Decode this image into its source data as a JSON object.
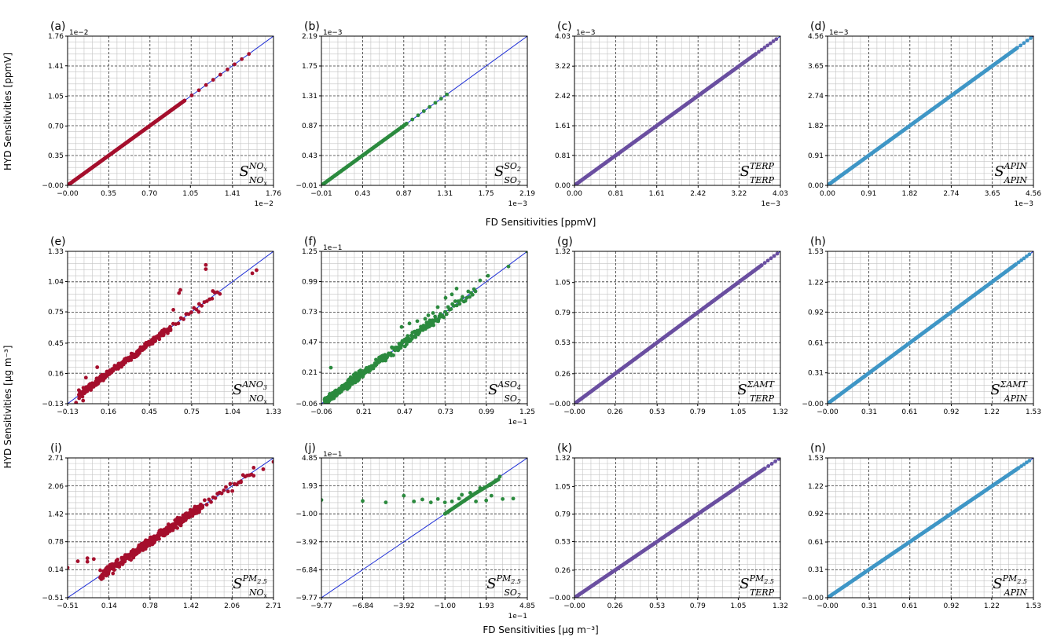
{
  "figure": {
    "xlabel_top": "FD Sensitivities [ppmV]",
    "xlabel_bottom": "FD Sensitivities [μg m⁻³]",
    "ylabel_top": "HYD Sensitivities [ppmV]",
    "ylabel_bottom": "HYD Sensitivities [μg m⁻³]"
  },
  "colors": {
    "NOx": "#a50f2d",
    "SO2": "#2b8a3e",
    "TERP": "#6a4fa0",
    "APIN": "#3f96c6",
    "reference_line": "#1f2fd6",
    "grid": "#000000"
  },
  "chart_data": [
    {
      "id": "a",
      "label": "(a)",
      "type": "scatter",
      "color_key": "NOx",
      "ticks": [
        "−0.00",
        "0.35",
        "0.70",
        "1.05",
        "1.41",
        "1.76"
      ],
      "tick_values": [
        0,
        0.35,
        0.7,
        1.05,
        1.41,
        1.76
      ],
      "lim": [
        0,
        1.76
      ],
      "multiplier": "1e−2",
      "symbol": {
        "base": "S",
        "sup": "NO",
        "sup_sub": "x",
        "sub": "NO",
        "sub_sub": "x"
      },
      "series": [
        {
          "segments": [
            [
              0,
              0,
              1.0,
              1.0,
              260
            ],
            [
              1.0,
              1.0,
              1.55,
              1.55,
              10
            ]
          ],
          "outliers": [],
          "bias": 0
        }
      ]
    },
    {
      "id": "b",
      "label": "(b)",
      "type": "scatter",
      "color_key": "SO2",
      "ticks": [
        "−0.01",
        "0.43",
        "0.87",
        "1.31",
        "1.75",
        "2.19"
      ],
      "tick_values": [
        -0.01,
        0.43,
        0.87,
        1.31,
        1.75,
        2.19
      ],
      "lim": [
        -0.01,
        2.19
      ],
      "multiplier": "1e−3",
      "symbol": {
        "base": "S",
        "sup": "SO",
        "sup_sub": "2",
        "sub": "SO",
        "sub_sub": "2"
      },
      "series": [
        {
          "segments": [
            [
              0,
              0,
              0.9,
              0.9,
              120
            ],
            [
              0.9,
              0.9,
              1.33,
              1.33,
              8
            ]
          ],
          "outliers": [],
          "bias": 0
        }
      ]
    },
    {
      "id": "c",
      "label": "(c)",
      "type": "scatter",
      "color_key": "TERP",
      "ticks": [
        "0.00",
        "0.81",
        "1.61",
        "2.42",
        "3.22",
        "4.03"
      ],
      "tick_values": [
        0,
        0.81,
        1.61,
        2.42,
        3.22,
        4.03
      ],
      "lim": [
        0,
        4.03
      ],
      "multiplier": "1e−3",
      "symbol": {
        "base": "S",
        "sup": "TERP",
        "sup_sub": "",
        "sub": "TERP",
        "sub_sub": ""
      },
      "series": [
        {
          "segments": [
            [
              0,
              0,
              3.55,
              3.55,
              300
            ],
            [
              3.55,
              3.55,
              3.95,
              3.95,
              8
            ]
          ],
          "outliers": [],
          "bias": 0
        }
      ]
    },
    {
      "id": "d",
      "label": "(d)",
      "type": "scatter",
      "color_key": "APIN",
      "ticks": [
        "0.00",
        "0.91",
        "1.82",
        "2.74",
        "3.65",
        "4.56"
      ],
      "tick_values": [
        0,
        0.91,
        1.82,
        2.74,
        3.65,
        4.56
      ],
      "lim": [
        0,
        4.56
      ],
      "multiplier": "1e−3",
      "symbol": {
        "base": "S",
        "sup": "APIN",
        "sup_sub": "",
        "sub": "APIN",
        "sub_sub": ""
      },
      "series": [
        {
          "segments": [
            [
              0,
              0,
              4.2,
              4.2,
              320
            ],
            [
              4.2,
              4.2,
              4.5,
              4.5,
              5
            ]
          ],
          "outliers": [],
          "bias": 0
        }
      ]
    },
    {
      "id": "e",
      "label": "(e)",
      "type": "scatter",
      "color_key": "NOx",
      "ticks": [
        "−0.13",
        "0.16",
        "0.45",
        "0.75",
        "1.04",
        "1.33"
      ],
      "tick_values": [
        -0.13,
        0.16,
        0.45,
        0.75,
        1.04,
        1.33
      ],
      "lim": [
        -0.13,
        1.33
      ],
      "multiplier": "",
      "symbol": {
        "base": "S",
        "sup": "ANO",
        "sup_sub": "3",
        "sub": "NO",
        "sub_sub": "x"
      },
      "series": [
        {
          "segments": [
            [
              -0.05,
              -0.05,
              0.15,
              0.15,
              120
            ],
            [
              0.15,
              0.15,
              0.6,
              0.6,
              160
            ],
            [
              0.6,
              0.6,
              0.95,
              0.95,
              20
            ]
          ],
          "outliers": [
            [
              0.85,
              1.2
            ],
            [
              0.85,
              1.16
            ],
            [
              0.67,
              0.96
            ],
            [
              0.66,
              0.93
            ],
            [
              0.8,
              0.75
            ],
            [
              0.62,
              0.77
            ],
            [
              1.18,
              1.12
            ],
            [
              1.21,
              1.15
            ],
            [
              0.9,
              0.95
            ],
            [
              -0.07,
              -0.12
            ],
            [
              -0.02,
              -0.1
            ],
            [
              0.0,
              0.12
            ],
            [
              -0.05,
              0.0
            ],
            [
              0.08,
              0.22
            ]
          ],
          "bias": 0.03
        }
      ]
    },
    {
      "id": "f",
      "label": "(f)",
      "type": "scatter",
      "color_key": "SO2",
      "ticks": [
        "−0.06",
        "0.21",
        "0.47",
        "0.73",
        "0.99",
        "1.25"
      ],
      "tick_values": [
        -0.06,
        0.21,
        0.47,
        0.73,
        0.99,
        1.25
      ],
      "lim": [
        -0.06,
        1.25
      ],
      "multiplier": "1e−1",
      "symbol": {
        "base": "S",
        "sup": "ASO",
        "sup_sub": "4",
        "sub": "SO",
        "sub_sub": "2"
      },
      "series": [
        {
          "segments": [
            [
              -0.04,
              -0.04,
              0.2,
              0.2,
              200
            ],
            [
              0.2,
              0.2,
              0.7,
              0.7,
              150
            ],
            [
              0.7,
              0.7,
              0.92,
              0.92,
              25
            ]
          ],
          "outliers": [
            [
              0.0,
              0.25
            ],
            [
              0.45,
              0.6
            ],
            [
              0.5,
              0.63
            ],
            [
              0.55,
              0.65
            ],
            [
              0.6,
              0.67
            ],
            [
              0.62,
              0.7
            ],
            [
              0.65,
              0.72
            ],
            [
              0.68,
              0.77
            ],
            [
              0.73,
              0.85
            ],
            [
              0.77,
              0.88
            ],
            [
              0.8,
              0.93
            ],
            [
              0.95,
              1.0
            ],
            [
              1.0,
              1.04
            ],
            [
              1.13,
              1.12
            ],
            [
              1.25,
              1.25
            ]
          ],
          "bias": 0.04
        }
      ]
    },
    {
      "id": "g",
      "label": "(g)",
      "type": "scatter",
      "color_key": "TERP",
      "ticks": [
        "−0.00",
        "0.26",
        "0.53",
        "0.79",
        "1.05",
        "1.32"
      ],
      "tick_values": [
        0,
        0.26,
        0.53,
        0.79,
        1.05,
        1.32
      ],
      "lim": [
        0,
        1.32
      ],
      "multiplier": "",
      "symbol": {
        "base": "S",
        "sup": "ΣAMT",
        "sup_sub": "",
        "sub": "TERP",
        "sub_sub": ""
      },
      "series": [
        {
          "segments": [
            [
              0,
              0,
              1.2,
              1.2,
              320
            ],
            [
              1.2,
              1.2,
              1.3,
              1.3,
              6
            ]
          ],
          "outliers": [],
          "bias": 0
        }
      ]
    },
    {
      "id": "h",
      "label": "(h)",
      "type": "scatter",
      "color_key": "APIN",
      "ticks": [
        "−0.00",
        "0.31",
        "0.61",
        "0.92",
        "1.22",
        "1.53"
      ],
      "tick_values": [
        0,
        0.31,
        0.61,
        0.92,
        1.22,
        1.53
      ],
      "lim": [
        0,
        1.53
      ],
      "multiplier": "",
      "symbol": {
        "base": "S",
        "sup": "ΣAMT",
        "sup_sub": "",
        "sub": "APIN",
        "sub_sub": ""
      },
      "series": [
        {
          "segments": [
            [
              0,
              0,
              1.4,
              1.4,
              320
            ],
            [
              1.4,
              1.4,
              1.5,
              1.5,
              6
            ]
          ],
          "outliers": [],
          "bias": 0
        }
      ]
    },
    {
      "id": "i",
      "label": "(i)",
      "type": "scatter",
      "color_key": "NOx",
      "ticks": [
        "−0.51",
        "0.14",
        "0.78",
        "1.42",
        "2.06",
        "2.71"
      ],
      "tick_values": [
        -0.51,
        0.14,
        0.78,
        1.42,
        2.06,
        2.71
      ],
      "lim": [
        -0.51,
        2.71
      ],
      "multiplier": "",
      "symbol": {
        "base": "S",
        "sup": "PM",
        "sup_sub": "2.5",
        "sub": "NO",
        "sub_sub": "x"
      },
      "series": [
        {
          "segments": [
            [
              0.0,
              0.0,
              0.5,
              0.5,
              80
            ],
            [
              0.5,
              0.5,
              1.6,
              1.6,
              280
            ],
            [
              1.6,
              1.6,
              2.4,
              2.4,
              25
            ]
          ],
          "outliers": [
            [
              -0.51,
              0.18
            ],
            [
              -0.35,
              0.33
            ],
            [
              -0.2,
              0.4
            ],
            [
              -0.1,
              0.38
            ],
            [
              -0.2,
              0.32
            ],
            [
              2.55,
              2.45
            ],
            [
              2.4,
              2.3
            ],
            [
              2.71,
              2.62
            ],
            [
              2.2,
              2.15
            ],
            [
              0.1,
              0.0
            ],
            [
              0.0,
              -0.05
            ],
            [
              0.2,
              0.05
            ]
          ],
          "bias": 0.05
        }
      ]
    },
    {
      "id": "j",
      "label": "(j)",
      "type": "scatter",
      "color_key": "SO2",
      "ticks": [
        "−9.77",
        "−6.84",
        "−3.92",
        "−1.00",
        "1.93",
        "4.85"
      ],
      "tick_values": [
        -9.77,
        -6.84,
        -3.92,
        -1.0,
        1.93,
        4.85
      ],
      "lim": [
        -9.77,
        4.85
      ],
      "multiplier": "1e−1",
      "symbol": {
        "base": "S",
        "sup": "PM",
        "sup_sub": "2.5",
        "sub": "SO",
        "sub_sub": "2"
      },
      "series": [
        {
          "segments": [
            [
              -1.0,
              -1.0,
              1.0,
              1.0,
              40
            ],
            [
              1.0,
              1.0,
              2.8,
              2.6,
              30
            ]
          ],
          "outliers": [
            [
              -9.77,
              0.45
            ],
            [
              -6.84,
              0.35
            ],
            [
              -5.2,
              0.2
            ],
            [
              -3.92,
              0.9
            ],
            [
              -3.2,
              0.3
            ],
            [
              -2.6,
              0.5
            ],
            [
              -2.0,
              0.2
            ],
            [
              -1.5,
              0.55
            ],
            [
              -1.0,
              0.2
            ],
            [
              -0.5,
              0.3
            ],
            [
              0.0,
              0.6
            ],
            [
              0.6,
              0.6
            ],
            [
              1.2,
              0.3
            ],
            [
              1.93,
              0.4
            ],
            [
              2.3,
              0.9
            ],
            [
              3.1,
              0.55
            ],
            [
              3.85,
              0.6
            ],
            [
              0.2,
              1.0
            ],
            [
              0.8,
              1.2
            ],
            [
              1.5,
              1.7
            ],
            [
              2.2,
              2.0
            ],
            [
              2.6,
              2.5
            ],
            [
              2.9,
              2.9
            ]
          ],
          "bias": 0
        }
      ]
    },
    {
      "id": "k",
      "label": "(k)",
      "type": "scatter",
      "color_key": "TERP",
      "ticks": [
        "−0.00",
        "0.26",
        "0.53",
        "0.79",
        "1.05",
        "1.32"
      ],
      "tick_values": [
        0,
        0.26,
        0.53,
        0.79,
        1.05,
        1.32
      ],
      "lim": [
        0,
        1.32
      ],
      "multiplier": "",
      "symbol": {
        "base": "S",
        "sup": "PM",
        "sup_sub": "2.5",
        "sub": "TERP",
        "sub_sub": ""
      },
      "series": [
        {
          "segments": [
            [
              0,
              0,
              1.22,
              1.22,
              320
            ],
            [
              1.22,
              1.22,
              1.31,
              1.31,
              5
            ]
          ],
          "outliers": [],
          "bias": 0
        }
      ]
    },
    {
      "id": "n",
      "label": "(n)",
      "type": "scatter",
      "color_key": "APIN",
      "ticks": [
        "−0.00",
        "0.31",
        "0.61",
        "0.92",
        "1.22",
        "1.53"
      ],
      "tick_values": [
        0,
        0.31,
        0.61,
        0.92,
        1.22,
        1.53
      ],
      "lim": [
        0,
        1.53
      ],
      "multiplier": "",
      "symbol": {
        "base": "S",
        "sup": "PM",
        "sup_sub": "2.5",
        "sub": "APIN",
        "sub_sub": ""
      },
      "series": [
        {
          "segments": [
            [
              0,
              0,
              1.42,
              1.42,
              320
            ],
            [
              1.42,
              1.42,
              1.5,
              1.5,
              5
            ]
          ],
          "outliers": [],
          "bias": 0
        }
      ]
    }
  ]
}
